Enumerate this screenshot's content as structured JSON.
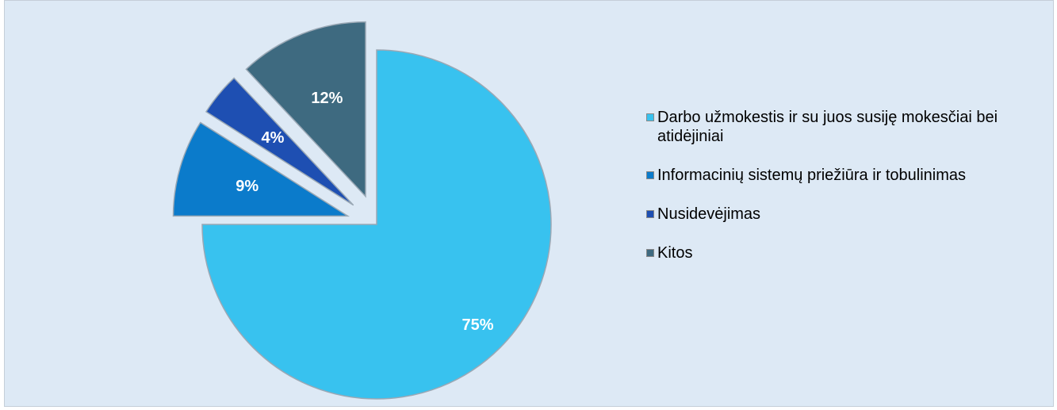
{
  "chart_data": {
    "type": "pie",
    "categories": [
      "Darbo užmokestis ir su juos susiję mokesčiai bei atidėjiniai",
      "Informacinių sistemų priežiūra ir tobulinimas",
      "Nusidevėjimas",
      "Kitos"
    ],
    "values": [
      75,
      9,
      4,
      12
    ],
    "value_labels": [
      "75%",
      "9%",
      "4%",
      "12%"
    ],
    "colors": [
      "#38c2ef",
      "#0b7bcb",
      "#1e4fb2",
      "#3e6a80"
    ],
    "legend": "right"
  }
}
